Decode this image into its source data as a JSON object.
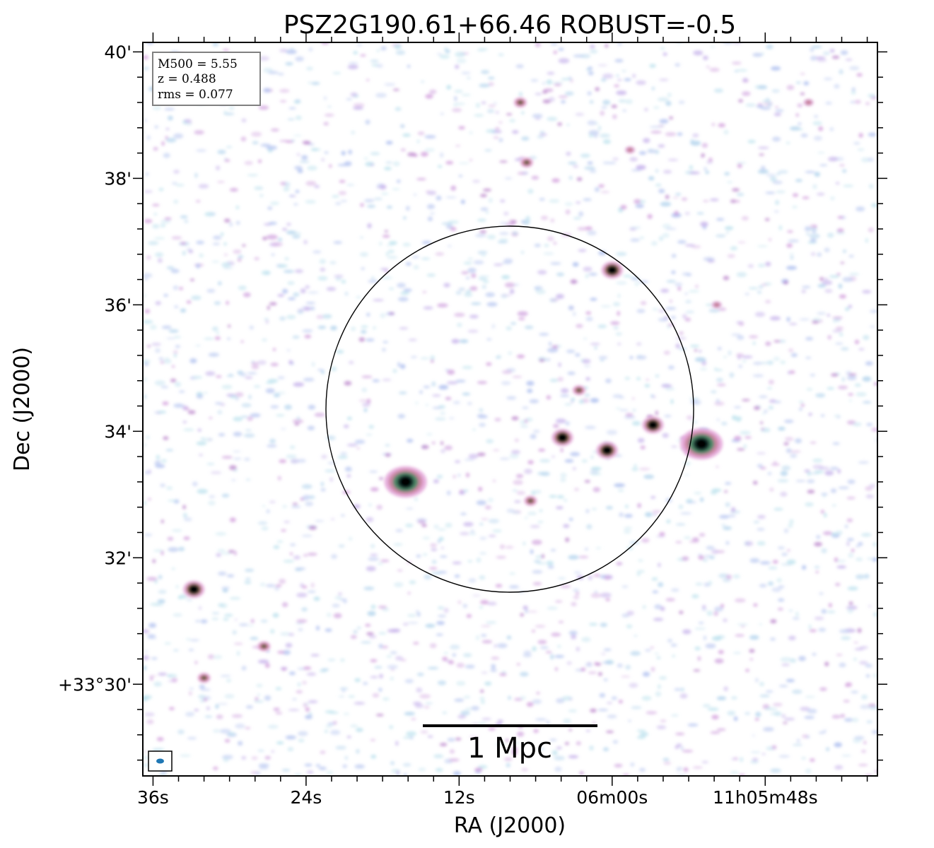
{
  "title": "PSZ2G190.61+66.46 ROBUST=-0.5",
  "xlabel": "RA (J2000)",
  "ylabel": "Dec (J2000)",
  "info": {
    "m500": "M500 = 5.55",
    "z": "z = 0.488",
    "rms": "rms = 0.077"
  },
  "scale_bar_label": "1 Mpc",
  "x_ticks": [
    {
      "label": "36s",
      "ra_sec": 36
    },
    {
      "label": "24s",
      "ra_sec": 24
    },
    {
      "label": "12s",
      "ra_sec": 12
    },
    {
      "label": "06m00s",
      "ra_sec": 0
    },
    {
      "label": "11h05m48s",
      "ra_sec": -12
    }
  ],
  "y_ticks": [
    {
      "label": "40'",
      "dec_arcmin": 40
    },
    {
      "label": "38'",
      "dec_arcmin": 38
    },
    {
      "label": "36'",
      "dec_arcmin": 36
    },
    {
      "label": "34'",
      "dec_arcmin": 34
    },
    {
      "label": "32'",
      "dec_arcmin": 32
    },
    {
      "label": "+33°30'",
      "dec_arcmin": 30
    }
  ],
  "chart_data": {
    "type": "heatmap",
    "ra_range_sec": [
      36.8,
      -20.8
    ],
    "dec_range_arcmin": [
      28.55,
      40.15
    ],
    "colormap": "cubehelix-like (white→blue→pink→green→black)",
    "circle": {
      "center_ra_sec": 7.9,
      "center_dec_arcmin": 34.3,
      "radius_arcmin": 2.9
    },
    "beam": "filled ellipse, lower-left",
    "sources": [
      {
        "ra_sec": 16.2,
        "dec_arcmin": 33.2,
        "level": "bright-extended"
      },
      {
        "ra_sec": 0.4,
        "dec_arcmin": 33.7,
        "level": "bright"
      },
      {
        "ra_sec": -7.0,
        "dec_arcmin": 33.8,
        "level": "bright-extended"
      },
      {
        "ra_sec": 3.9,
        "dec_arcmin": 33.9,
        "level": "bright"
      },
      {
        "ra_sec": -3.2,
        "dec_arcmin": 34.1,
        "level": "bright"
      },
      {
        "ra_sec": 0.0,
        "dec_arcmin": 36.55,
        "level": "bright"
      },
      {
        "ra_sec": 32.8,
        "dec_arcmin": 31.5,
        "level": "bright"
      },
      {
        "ra_sec": 32.0,
        "dec_arcmin": 30.1,
        "level": "medium"
      },
      {
        "ra_sec": 27.3,
        "dec_arcmin": 30.6,
        "level": "medium"
      },
      {
        "ra_sec": 2.6,
        "dec_arcmin": 34.65,
        "level": "medium"
      },
      {
        "ra_sec": 6.4,
        "dec_arcmin": 32.9,
        "level": "medium"
      },
      {
        "ra_sec": 7.2,
        "dec_arcmin": 39.2,
        "level": "medium"
      },
      {
        "ra_sec": 6.7,
        "dec_arcmin": 38.25,
        "level": "medium"
      },
      {
        "ra_sec": -1.4,
        "dec_arcmin": 38.45,
        "level": "faint"
      },
      {
        "ra_sec": -15.4,
        "dec_arcmin": 39.2,
        "level": "faint"
      },
      {
        "ra_sec": -8.2,
        "dec_arcmin": 36.0,
        "level": "faint"
      }
    ]
  }
}
